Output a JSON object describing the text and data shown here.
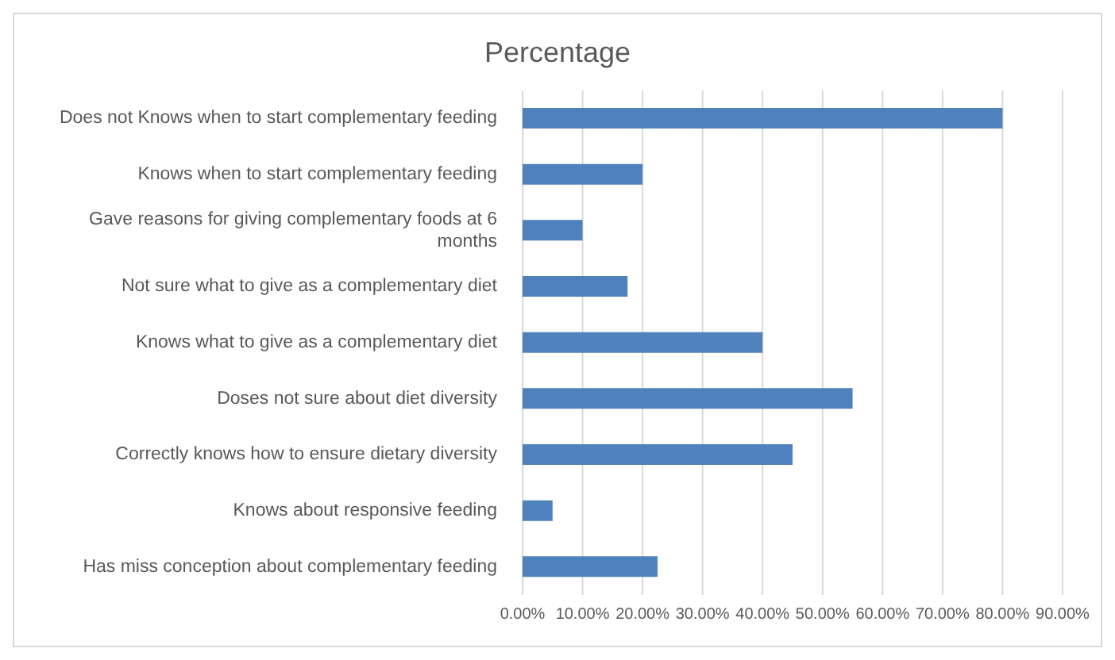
{
  "chart_data": {
    "type": "bar",
    "orientation": "horizontal",
    "title": "Percentage",
    "categories": [
      "Does not Knows when to start complementary feeding",
      "Knows when to start complementary feeding",
      "Gave reasons for giving complementary foods at 6 months",
      "Not sure what to give as a complementary diet",
      "Knows what to give as a complementary diet",
      "Doses not sure about diet diversity",
      "Correctly knows  how to ensure dietary diversity",
      "Knows about responsive feeding",
      "Has miss conception about complementary feeding"
    ],
    "values": [
      80,
      20,
      10,
      17.5,
      40,
      55,
      45,
      5,
      22.5
    ],
    "color": "#4f81bd",
    "xlim": [
      0,
      90
    ],
    "xticks": [
      {
        "value": 0,
        "label": "0.00%"
      },
      {
        "value": 10,
        "label": "10.00%"
      },
      {
        "value": 20,
        "label": "20.00%"
      },
      {
        "value": 30,
        "label": "30.00%"
      },
      {
        "value": 40,
        "label": "40.00%"
      },
      {
        "value": 50,
        "label": "50.00%"
      },
      {
        "value": 60,
        "label": "60.00%"
      },
      {
        "value": 70,
        "label": "70.00%"
      },
      {
        "value": 80,
        "label": "80.00%"
      },
      {
        "value": 90,
        "label": "90.00%"
      }
    ],
    "grid": "x"
  }
}
